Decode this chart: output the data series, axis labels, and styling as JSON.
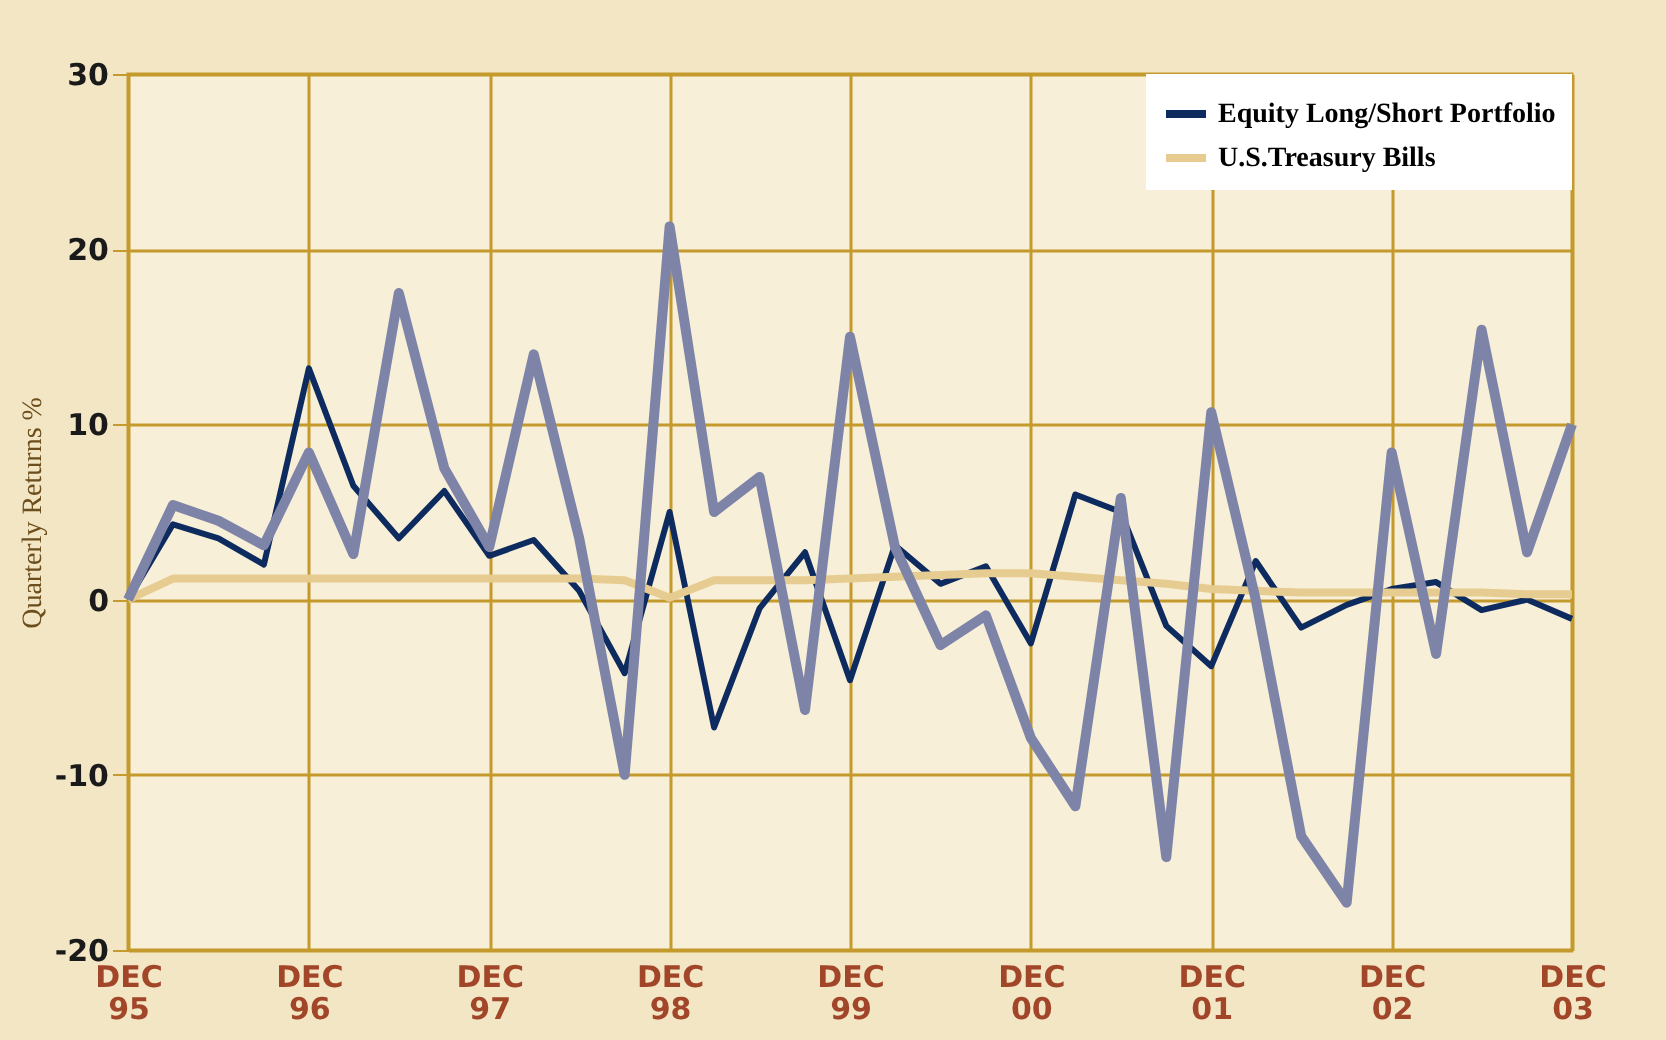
{
  "chart_data": {
    "type": "line",
    "ylabel": "Quarterly Returns %",
    "x": [
      "1995-12",
      "1996-03",
      "1996-06",
      "1996-09",
      "1996-12",
      "1997-03",
      "1997-06",
      "1997-09",
      "1997-12",
      "1998-03",
      "1998-06",
      "1998-09",
      "1998-12",
      "1999-03",
      "1999-06",
      "1999-09",
      "1999-12",
      "2000-03",
      "2000-06",
      "2000-09",
      "2000-12",
      "2001-03",
      "2001-06",
      "2001-09",
      "2001-12",
      "2002-03",
      "2002-06",
      "2002-09",
      "2002-12",
      "2003-03",
      "2003-06",
      "2003-09",
      "2003-12"
    ],
    "series": [
      {
        "name": "Equity Long/Short Portfolio",
        "color": "#0d2b5e",
        "values": [
          0,
          4.3,
          3.5,
          2,
          13.2,
          6.5,
          3.5,
          6.2,
          2.5,
          3.4,
          0.5,
          -4.2,
          5,
          -7.3,
          -0.5,
          2.7,
          -4.6,
          3.1,
          0.9,
          1.9,
          -2.5,
          6,
          5,
          -1.5,
          -3.8,
          2.2,
          -1.6,
          -0.3,
          0.6,
          1,
          -0.6,
          0,
          -1.1
        ]
      },
      {
        "name": "U.S.Treasury Bills",
        "color": "#e6cc90",
        "values": [
          0,
          1.2,
          1.2,
          1.2,
          1.2,
          1.2,
          1.2,
          1.2,
          1.2,
          1.2,
          1.2,
          1.1,
          0.1,
          1.1,
          1.1,
          1.1,
          1.2,
          1.3,
          1.4,
          1.5,
          1.5,
          1.3,
          1.1,
          0.9,
          0.6,
          0.5,
          0.4,
          0.4,
          0.4,
          0.4,
          0.4,
          0.3,
          0.3
        ]
      },
      {
        "color": "#7e84a8",
        "values": [
          0,
          5.4,
          4.5,
          3.1,
          8.4,
          2.6,
          17.5,
          7.5,
          3,
          14,
          3.5,
          -10,
          21.3,
          5,
          7,
          -6.3,
          15,
          3,
          -2.6,
          -0.9,
          -7.9,
          -11.8,
          5.8,
          -14.7,
          10.7,
          0,
          -13.5,
          -17.3,
          8.4,
          -3.1,
          15.4,
          2.7,
          10
        ]
      }
    ],
    "xlim": [
      "1995-12",
      "2003-12"
    ],
    "xticks": [
      {
        "value": "1995-12",
        "label": "DEC 95"
      },
      {
        "value": "1996-12",
        "label": "DEC 96"
      },
      {
        "value": "1997-12",
        "label": "DEC 97"
      },
      {
        "value": "1998-12",
        "label": "DEC 98"
      },
      {
        "value": "1999-12",
        "label": "DEC 99"
      },
      {
        "value": "2000-12",
        "label": "DEC 00"
      },
      {
        "value": "2001-12",
        "label": "DEC 01"
      },
      {
        "value": "2002-12",
        "label": "DEC 02"
      },
      {
        "value": "2003-12",
        "label": "DEC 03"
      }
    ],
    "ylim": [
      -20,
      30
    ],
    "yticks": [
      -20,
      -10,
      0,
      10,
      20,
      30
    ],
    "grid": true,
    "legend": "top right",
    "marker": "none",
    "line_style": "solid"
  }
}
